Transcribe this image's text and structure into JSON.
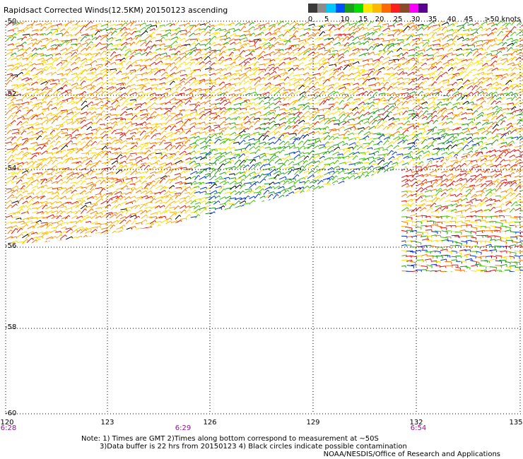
{
  "title": "Rapidsact Corrected Winds(12.5KM) 20150123 ascending",
  "colorbar": {
    "colors": [
      "#3a3a3a",
      "#8c8c8c",
      "#00c8ff",
      "#0050ff",
      "#18a018",
      "#00e000",
      "#ffe600",
      "#ffb800",
      "#ff6a00",
      "#ff1e1e",
      "#8b4a2b",
      "#ff00ff",
      "#5a0090"
    ],
    "labels": [
      "0",
      "5",
      "10",
      "15",
      "20",
      "25",
      "30",
      "35",
      "40",
      "45",
      ">50 knots"
    ]
  },
  "lat_labels": [
    "-50",
    "-52",
    "-54",
    "-56",
    "-58",
    "-60"
  ],
  "lon_labels": [
    "120",
    "123",
    "126",
    "129",
    "132",
    "135"
  ],
  "time_labels": [
    "6:28",
    "6:29",
    "6:54"
  ],
  "notes": [
    "Note: 1) Times are GMT 2)Times along bottom correspond to measurement at ~50S",
    "3)Data buffer is 22 hrs from 20150123 4) Black circles indicate possible contamination"
  ],
  "credit": "NOAA/NESDIS/Office of Research and Applications"
}
